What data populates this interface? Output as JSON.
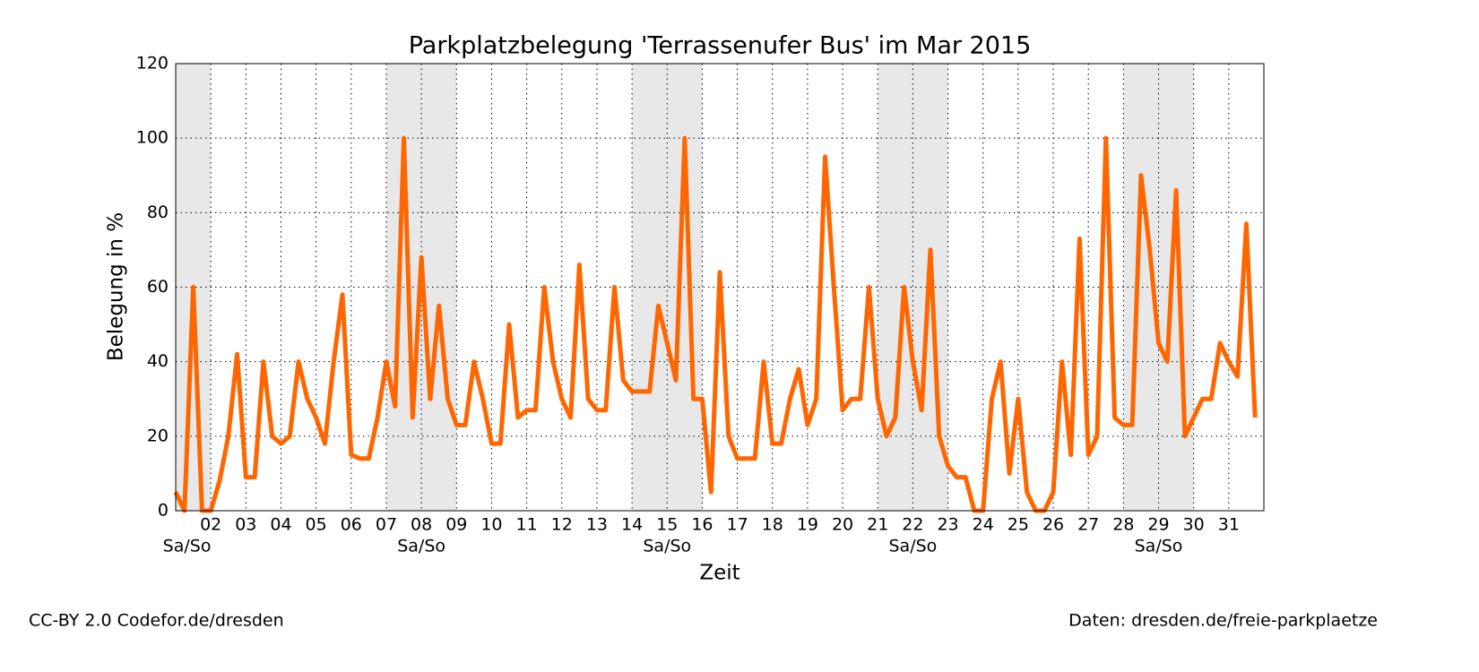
{
  "chart_data": {
    "type": "line",
    "title": "Parkplatzbelegung 'Terrassenufer Bus' im Mar 2015",
    "xlabel": "Zeit",
    "ylabel": "Belegung in %",
    "footer_left": "CC-BY 2.0 Codefor.de/dresden",
    "footer_right": "Daten: dresden.de/freie-parkplaetze",
    "xlim": [
      1,
      32
    ],
    "ylim": [
      0,
      120
    ],
    "yticks": [
      0,
      20,
      40,
      60,
      80,
      100,
      120
    ],
    "xticks": [
      {
        "value": 2,
        "label": "02"
      },
      {
        "value": 3,
        "label": "03"
      },
      {
        "value": 4,
        "label": "04"
      },
      {
        "value": 5,
        "label": "05"
      },
      {
        "value": 6,
        "label": "06"
      },
      {
        "value": 7,
        "label": "07"
      },
      {
        "value": 8,
        "label": "08"
      },
      {
        "value": 9,
        "label": "09"
      },
      10,
      11,
      12,
      13,
      14,
      15,
      16,
      17,
      18,
      19,
      20,
      21,
      22,
      23,
      24,
      25,
      26,
      27,
      28,
      29,
      30,
      31
    ],
    "grid": true,
    "weekends": [
      {
        "start": 1,
        "end": 2,
        "label": "Sa/So"
      },
      {
        "start": 7,
        "end": 9,
        "label": "Sa/So"
      },
      {
        "start": 14,
        "end": 16,
        "label": "Sa/So"
      },
      {
        "start": 21,
        "end": 23,
        "label": "Sa/So"
      },
      {
        "start": 28,
        "end": 30,
        "label": "Sa/So"
      }
    ],
    "series": [
      {
        "color": "#ff6600",
        "x": [
          1,
          1.25,
          1.5,
          1.75,
          2,
          2.25,
          2.5,
          2.75,
          3,
          3.25,
          3.5,
          3.75,
          4,
          4.25,
          4.5,
          4.75,
          5,
          5.25,
          5.5,
          5.75,
          6,
          6.25,
          6.5,
          6.75,
          7,
          7.25,
          7.5,
          7.75,
          8,
          8.25,
          8.5,
          8.75,
          9,
          9.25,
          9.5,
          9.75,
          10,
          10.25,
          10.5,
          10.75,
          11,
          11.25,
          11.5,
          11.75,
          12,
          12.25,
          12.5,
          12.75,
          13,
          13.25,
          13.5,
          13.75,
          14,
          14.25,
          14.5,
          14.75,
          15,
          15.25,
          15.5,
          15.75,
          16,
          16.25,
          16.5,
          16.75,
          17,
          17.25,
          17.5,
          17.75,
          18,
          18.25,
          18.5,
          18.75,
          19,
          19.25,
          19.5,
          19.75,
          20,
          20.25,
          20.5,
          20.75,
          21,
          21.25,
          21.5,
          21.75,
          22,
          22.25,
          22.5,
          22.75,
          23,
          23.25,
          23.5,
          23.75,
          24,
          24.25,
          24.5,
          24.75,
          25,
          25.25,
          25.5,
          25.75,
          26,
          26.25,
          26.5,
          26.75,
          27,
          27.25,
          27.5,
          27.75,
          28,
          28.25,
          28.5,
          28.75,
          29,
          29.25,
          29.5,
          29.75,
          30,
          30.25,
          30.5,
          30.75,
          31,
          31.25,
          31.5,
          31.75
        ],
        "values": [
          5,
          0,
          60,
          0,
          0,
          8,
          20,
          42,
          9,
          9,
          40,
          20,
          18,
          20,
          40,
          30,
          25,
          18,
          40,
          58,
          15,
          14,
          14,
          25,
          40,
          28,
          100,
          25,
          68,
          30,
          55,
          30,
          23,
          23,
          40,
          30,
          18,
          18,
          50,
          25,
          27,
          27,
          60,
          40,
          30,
          25,
          66,
          30,
          27,
          27,
          60,
          35,
          32,
          32,
          32,
          55,
          45,
          35,
          100,
          30,
          30,
          5,
          64,
          20,
          14,
          14,
          14,
          40,
          18,
          18,
          30,
          38,
          23,
          30,
          95,
          60,
          27,
          30,
          30,
          60,
          30,
          20,
          25,
          60,
          40,
          27,
          70,
          20,
          12,
          9,
          9,
          0,
          0,
          30,
          40,
          10,
          30,
          5,
          0,
          0,
          5,
          40,
          15,
          73,
          15,
          20,
          100,
          25,
          23,
          23,
          90,
          70,
          45,
          40,
          86,
          20,
          25,
          30,
          30,
          45,
          40,
          36,
          77,
          25
        ]
      }
    ]
  }
}
